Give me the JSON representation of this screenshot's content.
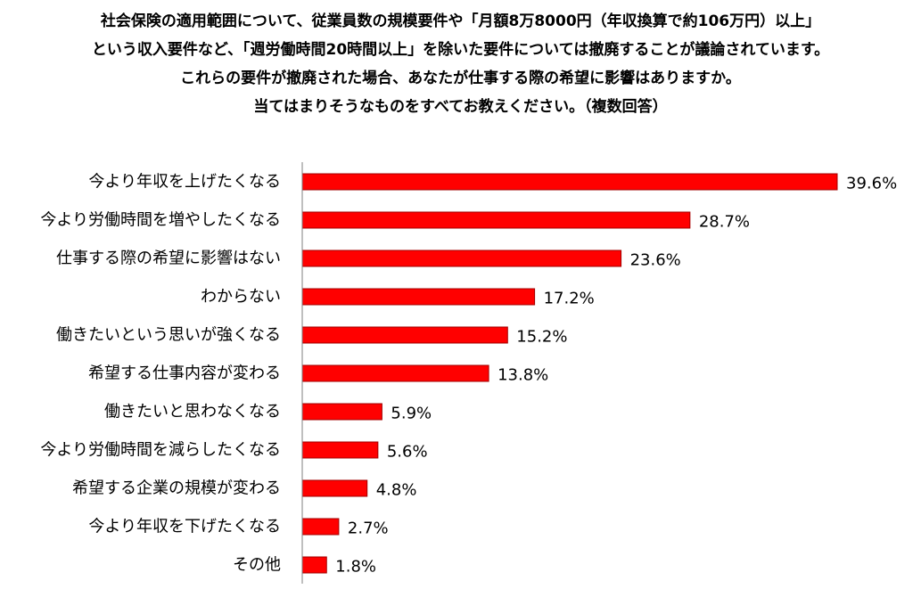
{
  "question": {
    "lines": [
      "社会保険の適用範囲について、従業員数の規模要件や「月額8万8000円（年収換算で約106万円）以上」",
      "という収入要件など、「週労働時間20時間以上」を除いた要件については撤廃することが議論されています。",
      "これらの要件が撤廃された場合、あなたが仕事する際の希望に影響はありますか。",
      "当てはまりそうなものをすべてお教えください。（複数回答）"
    ]
  },
  "chart_data": {
    "type": "bar",
    "orientation": "horizontal",
    "categories": [
      "今より年収を上げたくなる",
      "今より労働時間を増やしたくなる",
      "仕事する際の希望に影響はない",
      "わからない",
      "働きたいという思いが強くなる",
      "希望する仕事内容が変わる",
      "働きたいと思わなくなる",
      "今より労働時間を減らしたくなる",
      "希望する企業の規模が変わる",
      "今より年収を下げたくなる",
      "その他"
    ],
    "values": [
      39.6,
      28.7,
      23.6,
      17.2,
      15.2,
      13.8,
      5.9,
      5.6,
      4.8,
      2.7,
      1.8
    ],
    "value_labels": [
      "39.6%",
      "28.7%",
      "23.6%",
      "17.2%",
      "15.2%",
      "13.8%",
      "5.9%",
      "5.6%",
      "4.8%",
      "2.7%",
      "1.8%"
    ],
    "unit": "%",
    "xlim": [
      0,
      40
    ],
    "grid": false,
    "colors": {
      "bar": "#ff0000",
      "bar_border": "#a00000",
      "axis": "#7f7f7f"
    }
  }
}
